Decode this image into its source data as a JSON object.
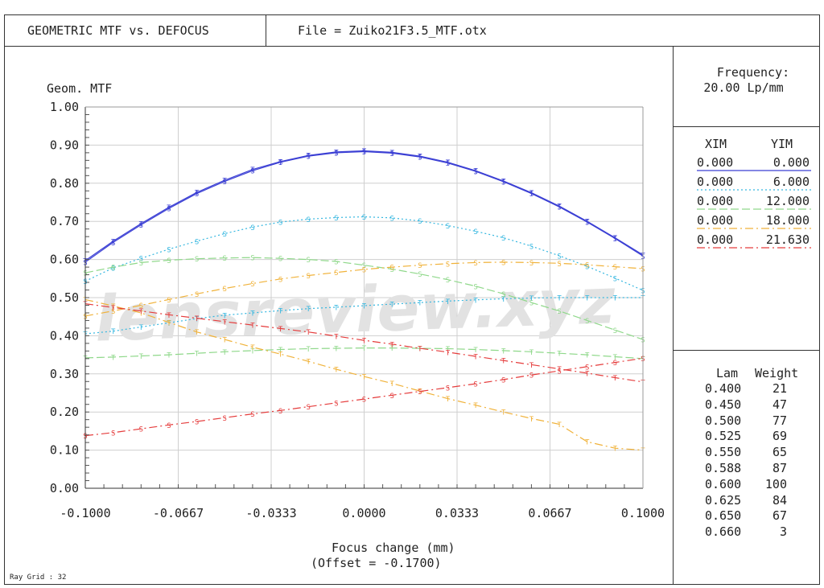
{
  "header": {
    "left_title": "GEOMETRIC MTF vs. DEFOCUS",
    "file": "File = Zuiko21F3.5_MTF.otx"
  },
  "frequency": {
    "label": "Frequency:",
    "value": "20.00  Lp/mm"
  },
  "fields": {
    "headers": [
      "XIM",
      "YIM"
    ],
    "rows": [
      {
        "xim": "0.000",
        "yim": "0.000",
        "color": "#3b3fd4",
        "dash": ""
      },
      {
        "xim": "0.000",
        "yim": "6.000",
        "color": "#35b7e0",
        "dash": "2,3"
      },
      {
        "xim": "0.000",
        "yim": "12.000",
        "color": "#8fd88a",
        "dash": "10,4"
      },
      {
        "xim": "0.000",
        "yim": "18.000",
        "color": "#f0b23a",
        "dash": "10,4,2,4"
      },
      {
        "xim": "0.000",
        "yim": "21.630",
        "color": "#e53c3c",
        "dash": "10,4,2,4"
      }
    ]
  },
  "wavelengths": {
    "headers": [
      "Lam",
      "Weight"
    ],
    "rows": [
      {
        "lam": "0.400",
        "weight": "21"
      },
      {
        "lam": "0.450",
        "weight": "47"
      },
      {
        "lam": "0.500",
        "weight": "77"
      },
      {
        "lam": "0.525",
        "weight": "69"
      },
      {
        "lam": "0.550",
        "weight": "65"
      },
      {
        "lam": "0.588",
        "weight": "87"
      },
      {
        "lam": "0.600",
        "weight": "100"
      },
      {
        "lam": "0.625",
        "weight": "84"
      },
      {
        "lam": "0.650",
        "weight": "67"
      },
      {
        "lam": "0.660",
        "weight": "3"
      }
    ]
  },
  "ray_grid": "Ray Grid : 32",
  "watermark": "lensreview.xyz",
  "chart_data": {
    "type": "line",
    "ylabel": "Geom. MTF",
    "xlabel": "Focus change (mm)",
    "xlabel2": "(Offset = -0.1700)",
    "xlim": [
      -0.1,
      0.1
    ],
    "ylim": [
      0,
      1
    ],
    "x_tick_labels": [
      "-0.1000",
      "-0.0667",
      "-0.0333",
      "0.0000",
      "0.0333",
      "0.0667",
      "0.1000"
    ],
    "y_tick_labels": [
      "0.00",
      "0.10",
      "0.20",
      "0.30",
      "0.40",
      "0.50",
      "0.60",
      "0.70",
      "0.80",
      "0.90",
      "1.00"
    ],
    "grid": true,
    "x": [
      -0.1,
      -0.09,
      -0.08,
      -0.07,
      -0.06,
      -0.05,
      -0.04,
      -0.03,
      -0.02,
      -0.01,
      0.0,
      0.01,
      0.02,
      0.03,
      0.04,
      0.05,
      0.06,
      0.07,
      0.08,
      0.09,
      0.1
    ],
    "series": [
      {
        "field": "0.000 / 0.000",
        "orientation": "T",
        "values": [
          0.597,
          0.648,
          0.694,
          0.737,
          0.776,
          0.808,
          0.836,
          0.857,
          0.873,
          0.882,
          0.885,
          0.881,
          0.871,
          0.855,
          0.833,
          0.806,
          0.775,
          0.74,
          0.7,
          0.657,
          0.612
        ]
      },
      {
        "field": "0.000 / 0.000",
        "orientation": "S",
        "values": [
          0.593,
          0.645,
          0.691,
          0.734,
          0.773,
          0.805,
          0.833,
          0.855,
          0.871,
          0.88,
          0.883,
          0.879,
          0.869,
          0.853,
          0.831,
          0.804,
          0.773,
          0.738,
          0.698,
          0.655,
          0.609
        ]
      },
      {
        "field": "0.000 / 6.000",
        "orientation": "T",
        "values": [
          0.405,
          0.412,
          0.423,
          0.434,
          0.445,
          0.454,
          0.46,
          0.466,
          0.471,
          0.475,
          0.479,
          0.483,
          0.487,
          0.491,
          0.494,
          0.497,
          0.499,
          0.5,
          0.5,
          0.5,
          0.5
        ]
      },
      {
        "field": "0.000 / 6.000",
        "orientation": "S",
        "values": [
          0.543,
          0.578,
          0.603,
          0.627,
          0.648,
          0.668,
          0.685,
          0.698,
          0.706,
          0.71,
          0.712,
          0.709,
          0.701,
          0.689,
          0.674,
          0.657,
          0.635,
          0.61,
          0.582,
          0.551,
          0.519
        ]
      },
      {
        "field": "0.000 / 12.000",
        "orientation": "T",
        "values": [
          0.342,
          0.344,
          0.347,
          0.35,
          0.354,
          0.358,
          0.361,
          0.364,
          0.366,
          0.367,
          0.368,
          0.368,
          0.367,
          0.366,
          0.364,
          0.361,
          0.358,
          0.354,
          0.35,
          0.345,
          0.34
        ]
      },
      {
        "field": "0.000 / 12.000",
        "orientation": "S",
        "values": [
          0.565,
          0.58,
          0.592,
          0.598,
          0.602,
          0.604,
          0.605,
          0.603,
          0.6,
          0.595,
          0.585,
          0.575,
          0.562,
          0.547,
          0.53,
          0.51,
          0.487,
          0.465,
          0.44,
          0.415,
          0.39
        ]
      },
      {
        "field": "0.000 / 18.000",
        "orientation": "T",
        "values": [
          0.495,
          0.478,
          0.46,
          0.435,
          0.41,
          0.39,
          0.37,
          0.352,
          0.333,
          0.312,
          0.293,
          0.275,
          0.255,
          0.235,
          0.218,
          0.2,
          0.183,
          0.168,
          0.122,
          0.105,
          0.1
        ]
      },
      {
        "field": "0.000 / 18.000",
        "orientation": "S",
        "values": [
          0.452,
          0.465,
          0.48,
          0.495,
          0.51,
          0.524,
          0.537,
          0.549,
          0.558,
          0.566,
          0.574,
          0.58,
          0.585,
          0.589,
          0.592,
          0.593,
          0.592,
          0.59,
          0.586,
          0.581,
          0.576
        ]
      },
      {
        "field": "0.000 / 21.630",
        "orientation": "T",
        "values": [
          0.484,
          0.474,
          0.465,
          0.455,
          0.446,
          0.437,
          0.428,
          0.419,
          0.41,
          0.399,
          0.388,
          0.378,
          0.367,
          0.357,
          0.346,
          0.335,
          0.324,
          0.313,
          0.302,
          0.29,
          0.279
        ]
      },
      {
        "field": "0.000 / 21.630",
        "orientation": "S",
        "values": [
          0.138,
          0.146,
          0.156,
          0.166,
          0.175,
          0.185,
          0.195,
          0.204,
          0.214,
          0.224,
          0.234,
          0.244,
          0.254,
          0.264,
          0.274,
          0.285,
          0.297,
          0.308,
          0.319,
          0.33,
          0.341
        ]
      }
    ]
  }
}
